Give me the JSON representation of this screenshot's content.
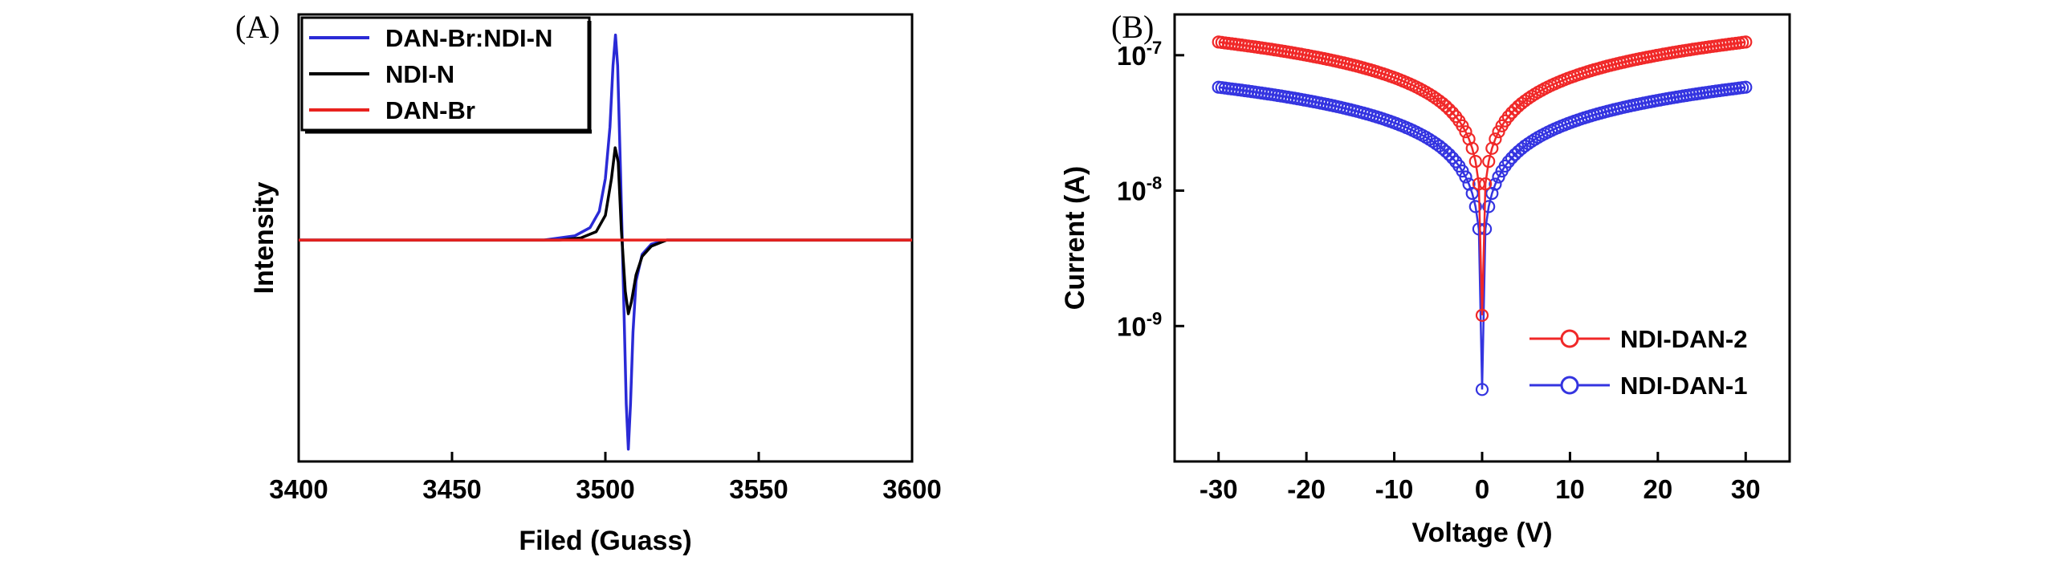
{
  "figure": {
    "panels": [
      "(A)",
      "(B)"
    ]
  },
  "colors": {
    "blue": "#2a2ad6",
    "black": "#000000",
    "red": "#e8221e",
    "blue_marker": "#3434e0",
    "red_marker": "#f02828"
  },
  "chart_data": [
    {
      "type": "line",
      "panel": "(A)",
      "title": "",
      "xlabel": "Filed (Guass)",
      "ylabel": "Intensity",
      "xlim": [
        3400,
        3600
      ],
      "ylim": [
        -1.08,
        1.1
      ],
      "xticks": [
        3400,
        3450,
        3500,
        3550,
        3600
      ],
      "yticks_shown": false,
      "legend_position": "top-left",
      "series": [
        {
          "name": "DAN-Br:NDI-N",
          "color_key": "blue",
          "x": [
            3400,
            3480,
            3490,
            3495,
            3498,
            3500,
            3501.5,
            3502.5,
            3503.3,
            3504,
            3505,
            3506,
            3506.8,
            3507.5,
            3508.2,
            3509,
            3510,
            3512,
            3515,
            3520,
            3530,
            3600
          ],
          "y": [
            0,
            0,
            0.02,
            0.06,
            0.14,
            0.3,
            0.55,
            0.85,
            1.0,
            0.85,
            0.3,
            -0.3,
            -0.8,
            -1.02,
            -0.8,
            -0.45,
            -0.2,
            -0.07,
            -0.02,
            0,
            0,
            0
          ]
        },
        {
          "name": "NDI-N",
          "color_key": "black",
          "x": [
            3400,
            3485,
            3492,
            3497,
            3500,
            3502,
            3503.2,
            3504.2,
            3505.2,
            3506.5,
            3507.5,
            3508.5,
            3510,
            3512,
            3515,
            3520,
            3600
          ],
          "y": [
            0,
            0,
            0.01,
            0.04,
            0.12,
            0.3,
            0.45,
            0.38,
            0.05,
            -0.25,
            -0.36,
            -0.3,
            -0.17,
            -0.08,
            -0.03,
            0,
            0
          ]
        },
        {
          "name": "DAN-Br",
          "color_key": "red",
          "x": [
            3400,
            3600
          ],
          "y": [
            0,
            0
          ]
        }
      ]
    },
    {
      "type": "scatter",
      "panel": "(B)",
      "title": "",
      "xlabel": "Voltage (V)",
      "ylabel": "Current (A)",
      "xlim": [
        -35,
        35
      ],
      "yscale": "log",
      "ylim": [
        1e-10,
        2e-07
      ],
      "xticks": [
        -30,
        -20,
        -10,
        0,
        10,
        20,
        30
      ],
      "ytick_base": "10",
      "yticks": [
        {
          "value": 1e-09,
          "exp": "-9"
        },
        {
          "value": 1e-08,
          "exp": "-8"
        },
        {
          "value": 1e-07,
          "exp": "-7"
        }
      ],
      "legend_position": "lower-right",
      "marker": "open-circle",
      "series": [
        {
          "name": "NDI-DAN-2",
          "color_key": "red",
          "current_at_30V": 1.25e-07,
          "current_at_0V": 1.2e-09,
          "shape_exponent": 0.55
        },
        {
          "name": "NDI-DAN-1",
          "color_key": "blue",
          "current_at_30V": 5.8e-08,
          "current_at_0V": 3.4e-10,
          "shape_exponent": 0.55
        }
      ]
    }
  ]
}
